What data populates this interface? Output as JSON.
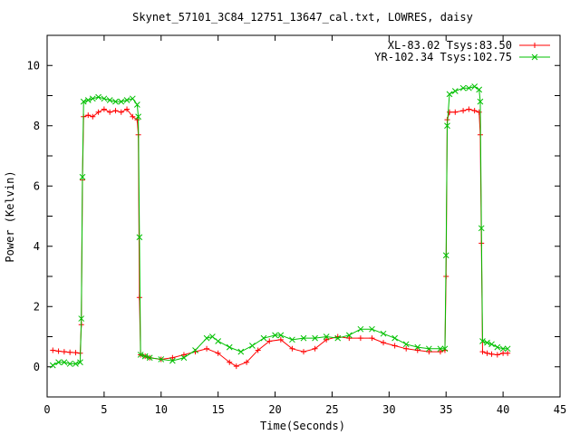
{
  "chart_data": {
    "type": "line",
    "title": "Skynet_57101_3C84_12751_13647_cal.txt, LOWRES, daisy",
    "xlabel": "Time(Seconds)",
    "ylabel": "Power (Kelvin)",
    "xlim": [
      0,
      45
    ],
    "ylim": [
      -1,
      11
    ],
    "x_ticks": [
      0,
      5,
      10,
      15,
      20,
      25,
      30,
      35,
      40,
      45
    ],
    "y_ticks": [
      0,
      2,
      4,
      6,
      8,
      10
    ],
    "legend_position": "top-right",
    "series": [
      {
        "name": "XL-83.02 Tsys:83.50",
        "color": "#ff0000",
        "marker": "plus",
        "points": [
          [
            0.5,
            0.55
          ],
          [
            1.0,
            0.52
          ],
          [
            1.5,
            0.5
          ],
          [
            2.0,
            0.48
          ],
          [
            2.5,
            0.47
          ],
          [
            2.9,
            0.45
          ],
          [
            3.0,
            1.4
          ],
          [
            3.1,
            6.2
          ],
          [
            3.2,
            8.3
          ],
          [
            3.6,
            8.35
          ],
          [
            4.0,
            8.3
          ],
          [
            4.5,
            8.45
          ],
          [
            5.0,
            8.55
          ],
          [
            5.5,
            8.45
          ],
          [
            6.0,
            8.5
          ],
          [
            6.5,
            8.45
          ],
          [
            7.0,
            8.55
          ],
          [
            7.5,
            8.3
          ],
          [
            7.9,
            8.2
          ],
          [
            8.0,
            7.7
          ],
          [
            8.1,
            2.3
          ],
          [
            8.2,
            0.4
          ],
          [
            8.6,
            0.35
          ],
          [
            9.0,
            0.3
          ],
          [
            10.0,
            0.25
          ],
          [
            11.0,
            0.3
          ],
          [
            12.0,
            0.4
          ],
          [
            13.0,
            0.5
          ],
          [
            14.0,
            0.6
          ],
          [
            15.0,
            0.45
          ],
          [
            16.0,
            0.15
          ],
          [
            16.6,
            0.02
          ],
          [
            17.5,
            0.15
          ],
          [
            18.5,
            0.55
          ],
          [
            19.5,
            0.85
          ],
          [
            20.5,
            0.9
          ],
          [
            21.5,
            0.6
          ],
          [
            22.5,
            0.5
          ],
          [
            23.5,
            0.6
          ],
          [
            24.5,
            0.9
          ],
          [
            25.5,
            1.0
          ],
          [
            26.5,
            0.95
          ],
          [
            27.5,
            0.95
          ],
          [
            28.5,
            0.95
          ],
          [
            29.5,
            0.8
          ],
          [
            30.5,
            0.7
          ],
          [
            31.5,
            0.6
          ],
          [
            32.5,
            0.55
          ],
          [
            33.5,
            0.5
          ],
          [
            34.5,
            0.5
          ],
          [
            34.9,
            0.55
          ],
          [
            35.0,
            3.0
          ],
          [
            35.1,
            8.2
          ],
          [
            35.3,
            8.45
          ],
          [
            35.8,
            8.45
          ],
          [
            36.5,
            8.5
          ],
          [
            37.0,
            8.55
          ],
          [
            37.5,
            8.5
          ],
          [
            37.9,
            8.45
          ],
          [
            38.0,
            7.7
          ],
          [
            38.1,
            4.1
          ],
          [
            38.2,
            0.5
          ],
          [
            38.6,
            0.45
          ],
          [
            39.0,
            0.42
          ],
          [
            39.5,
            0.4
          ],
          [
            40.0,
            0.45
          ],
          [
            40.4,
            0.45
          ]
        ]
      },
      {
        "name": "YR-102.34 Tsys:102.75",
        "color": "#00c000",
        "marker": "cross",
        "points": [
          [
            0.5,
            0.05
          ],
          [
            1.0,
            0.15
          ],
          [
            1.5,
            0.15
          ],
          [
            2.0,
            0.1
          ],
          [
            2.5,
            0.1
          ],
          [
            2.9,
            0.15
          ],
          [
            3.0,
            1.6
          ],
          [
            3.1,
            6.3
          ],
          [
            3.2,
            8.8
          ],
          [
            3.6,
            8.85
          ],
          [
            4.0,
            8.9
          ],
          [
            4.5,
            8.95
          ],
          [
            5.0,
            8.9
          ],
          [
            5.5,
            8.85
          ],
          [
            6.0,
            8.8
          ],
          [
            6.5,
            8.8
          ],
          [
            7.0,
            8.85
          ],
          [
            7.5,
            8.9
          ],
          [
            7.9,
            8.7
          ],
          [
            8.0,
            8.3
          ],
          [
            8.1,
            4.3
          ],
          [
            8.2,
            0.4
          ],
          [
            8.6,
            0.35
          ],
          [
            9.0,
            0.3
          ],
          [
            10.0,
            0.25
          ],
          [
            11.0,
            0.2
          ],
          [
            12.0,
            0.3
          ],
          [
            13.0,
            0.55
          ],
          [
            14.0,
            0.95
          ],
          [
            14.5,
            1.0
          ],
          [
            15.0,
            0.85
          ],
          [
            16.0,
            0.65
          ],
          [
            17.0,
            0.5
          ],
          [
            18.0,
            0.7
          ],
          [
            19.0,
            0.95
          ],
          [
            20.0,
            1.05
          ],
          [
            20.5,
            1.05
          ],
          [
            21.5,
            0.9
          ],
          [
            22.5,
            0.95
          ],
          [
            23.5,
            0.95
          ],
          [
            24.5,
            1.0
          ],
          [
            25.5,
            0.95
          ],
          [
            26.5,
            1.05
          ],
          [
            27.5,
            1.25
          ],
          [
            28.5,
            1.25
          ],
          [
            29.5,
            1.1
          ],
          [
            30.5,
            0.95
          ],
          [
            31.5,
            0.75
          ],
          [
            32.5,
            0.65
          ],
          [
            33.5,
            0.6
          ],
          [
            34.5,
            0.6
          ],
          [
            34.9,
            0.6
          ],
          [
            35.0,
            3.7
          ],
          [
            35.1,
            8.0
          ],
          [
            35.3,
            9.05
          ],
          [
            35.8,
            9.15
          ],
          [
            36.5,
            9.25
          ],
          [
            37.0,
            9.25
          ],
          [
            37.5,
            9.3
          ],
          [
            37.9,
            9.2
          ],
          [
            38.0,
            8.8
          ],
          [
            38.1,
            4.6
          ],
          [
            38.2,
            0.85
          ],
          [
            38.6,
            0.8
          ],
          [
            39.0,
            0.75
          ],
          [
            39.5,
            0.65
          ],
          [
            40.0,
            0.6
          ],
          [
            40.4,
            0.6
          ]
        ]
      }
    ]
  }
}
